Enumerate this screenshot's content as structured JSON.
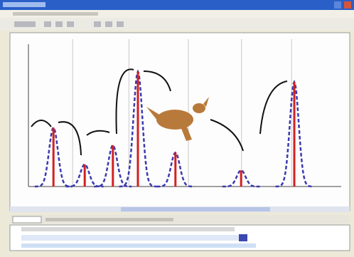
{
  "chart_data": {
    "type": "peaks",
    "x": [
      8,
      18,
      27,
      35,
      47,
      68,
      85
    ],
    "values": [
      40,
      15,
      28,
      78,
      23,
      11,
      71
    ],
    "xlim": [
      0,
      100
    ],
    "ylim": [
      0,
      100
    ],
    "color": "#d42020",
    "fit_color": "#3a3ab0",
    "grid": true
  }
}
